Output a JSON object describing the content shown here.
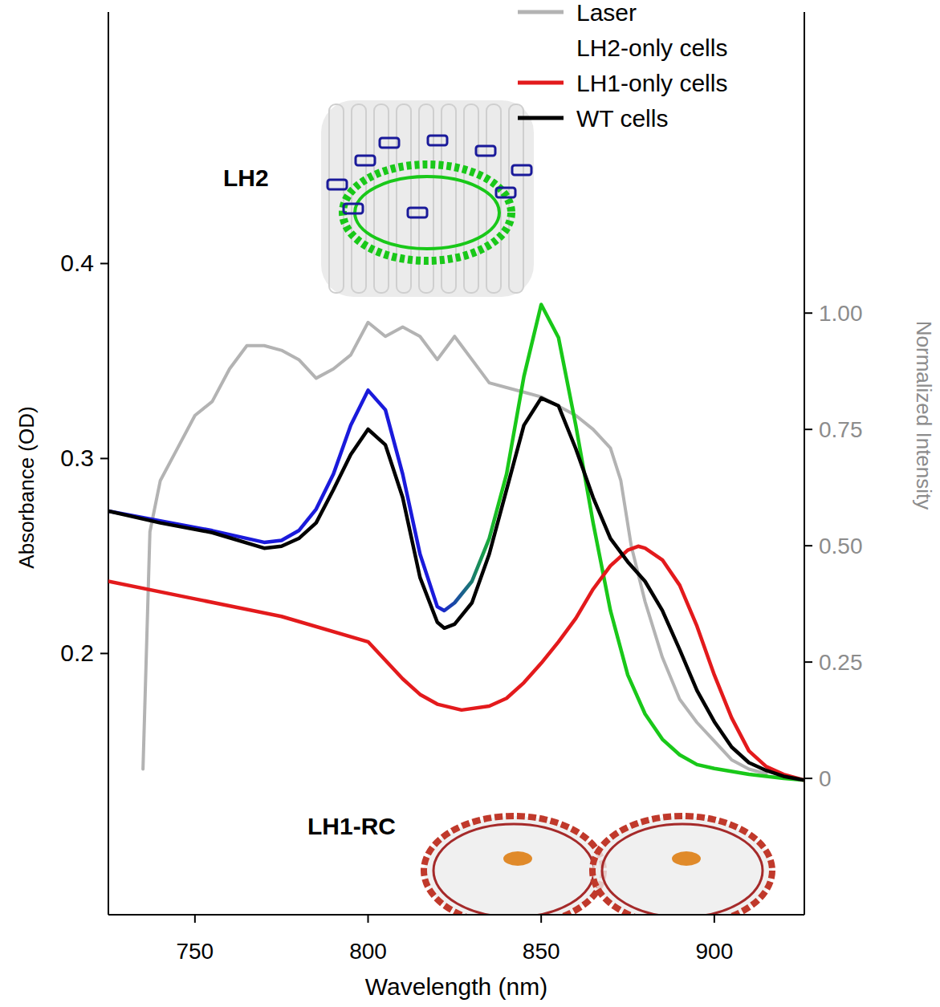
{
  "chart_data": {
    "type": "line",
    "x_label": "Wavelength (nm)",
    "y_label": "Absorbance (OD)",
    "y2_label": "Normalized Intensity",
    "xlim": [
      725,
      926
    ],
    "ylim": [
      0.066,
      0.529
    ],
    "y2lim": [
      -0.293,
      1.647
    ],
    "xticks": [
      750,
      800,
      850,
      900
    ],
    "yticks": [
      0.2,
      0.3,
      0.4
    ],
    "y2ticks": [
      0,
      0.25,
      {
        "value": 0.5,
        "label": "0.50"
      },
      0.75,
      {
        "value": 1,
        "label": "1.00"
      }
    ],
    "legend": "top-right",
    "annotations": [
      {
        "text": "LH2"
      },
      {
        "text": "LH1-RC"
      }
    ],
    "series": [
      {
        "name": "Laser",
        "color": "#b3b3b3",
        "axis": "y2",
        "x": [
          735,
          737,
          740,
          745,
          750,
          755,
          760,
          765,
          770,
          775,
          780,
          785,
          790,
          795,
          800,
          805,
          810,
          815,
          820,
          825,
          830,
          835,
          840,
          845,
          850,
          855,
          860,
          865,
          870,
          873,
          876,
          880,
          885,
          890,
          895,
          900,
          905,
          910,
          915
        ],
        "values": [
          0.02,
          0.53,
          0.64,
          0.71,
          0.78,
          0.81,
          0.88,
          0.93,
          0.93,
          0.92,
          0.9,
          0.86,
          0.88,
          0.91,
          0.98,
          0.95,
          0.97,
          0.95,
          0.9,
          0.95,
          0.9,
          0.85,
          0.84,
          0.83,
          0.82,
          0.8,
          0.78,
          0.75,
          0.71,
          0.64,
          0.5,
          0.38,
          0.26,
          0.17,
          0.12,
          0.08,
          0.04,
          0.02,
          0.01
        ]
      },
      {
        "name": "LH2-only cells",
        "colors": [
          "#1a1adb",
          "#19c819"
        ],
        "x": [
          725,
          740,
          755,
          770,
          775,
          780,
          785,
          790,
          795,
          800,
          805,
          810,
          815,
          820,
          822,
          825,
          830,
          835,
          840,
          845,
          850,
          855,
          860,
          865,
          870,
          875,
          880,
          885,
          890,
          895,
          900,
          910,
          920,
          926
        ],
        "values": [
          0.273,
          0.268,
          0.263,
          0.257,
          0.258,
          0.263,
          0.274,
          0.292,
          0.317,
          0.335,
          0.325,
          0.292,
          0.251,
          0.224,
          0.222,
          0.226,
          0.237,
          0.259,
          0.292,
          0.342,
          0.379,
          0.362,
          0.317,
          0.267,
          0.222,
          0.189,
          0.169,
          0.156,
          0.148,
          0.143,
          0.141,
          0.138,
          0.136,
          0.135
        ]
      },
      {
        "name": "LH1-only cells",
        "color": "#e31a1c",
        "x": [
          725,
          750,
          775,
          800,
          810,
          815,
          820,
          827,
          835,
          840,
          845,
          850,
          855,
          860,
          865,
          870,
          875,
          878,
          880,
          885,
          890,
          895,
          900,
          905,
          910,
          915,
          920,
          926
        ],
        "values": [
          0.237,
          0.228,
          0.219,
          0.206,
          0.187,
          0.179,
          0.174,
          0.171,
          0.173,
          0.177,
          0.185,
          0.195,
          0.206,
          0.218,
          0.233,
          0.245,
          0.253,
          0.255,
          0.254,
          0.248,
          0.235,
          0.214,
          0.189,
          0.167,
          0.15,
          0.142,
          0.138,
          0.135
        ]
      },
      {
        "name": "WT cells",
        "color": "#000000",
        "x": [
          725,
          740,
          755,
          770,
          775,
          780,
          785,
          790,
          795,
          800,
          805,
          810,
          815,
          820,
          822,
          825,
          830,
          835,
          840,
          845,
          850,
          855,
          860,
          865,
          870,
          875,
          880,
          885,
          890,
          895,
          900,
          905,
          910,
          915,
          920,
          926
        ],
        "values": [
          0.273,
          0.267,
          0.262,
          0.254,
          0.255,
          0.259,
          0.267,
          0.284,
          0.302,
          0.315,
          0.307,
          0.28,
          0.239,
          0.216,
          0.213,
          0.215,
          0.226,
          0.251,
          0.284,
          0.317,
          0.331,
          0.327,
          0.305,
          0.28,
          0.259,
          0.247,
          0.237,
          0.222,
          0.202,
          0.181,
          0.165,
          0.152,
          0.144,
          0.14,
          0.137,
          0.135
        ]
      }
    ]
  }
}
